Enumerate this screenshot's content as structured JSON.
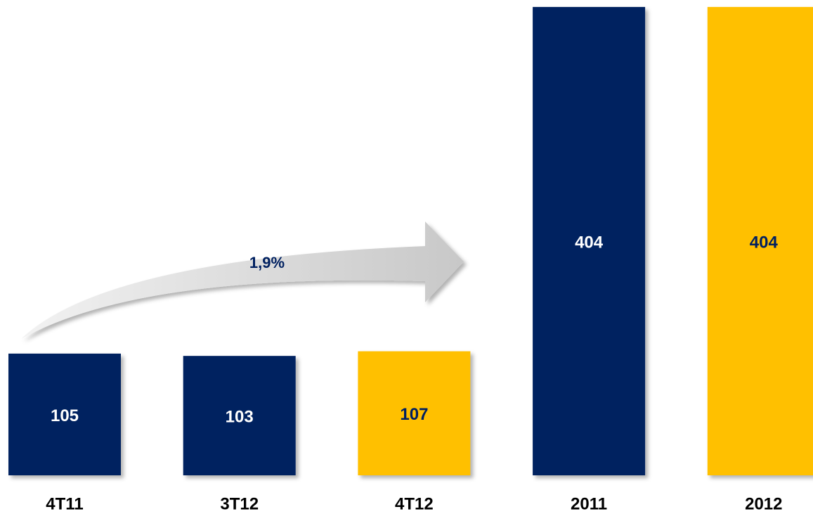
{
  "chart_data": {
    "type": "bar",
    "categories": [
      "4T11",
      "3T12",
      "4T12",
      "2011",
      "2012"
    ],
    "values": [
      105,
      103,
      107,
      404,
      404
    ],
    "colors": [
      "#002060",
      "#002060",
      "#ffc000",
      "#002060",
      "#ffc000"
    ],
    "label_colors": [
      "#ffffff",
      "#ffffff",
      "#002060",
      "#ffffff",
      "#002060"
    ],
    "ylim": [
      0,
      410
    ],
    "annotation": "1,9%"
  }
}
